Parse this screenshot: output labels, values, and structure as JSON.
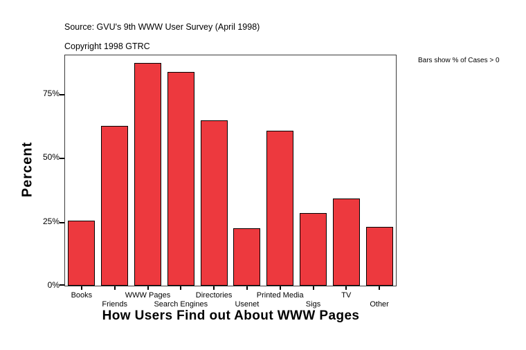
{
  "header": {
    "source": "Source: GVU's 9th WWW User Survey (April 1998)",
    "copyright": "Copyright 1998 GTRC"
  },
  "annotation": "Bars show % of Cases > 0",
  "chart_data": {
    "type": "bar",
    "title": "How Users Find out About WWW Pages",
    "xlabel": "",
    "ylabel": "Percent",
    "categories": [
      "Books",
      "Friends",
      "WWW Pages",
      "Search Engines",
      "Directories",
      "Usenet",
      "Printed Media",
      "Sigs",
      "TV",
      "Other"
    ],
    "values": [
      25.5,
      62.5,
      87,
      83.5,
      64.5,
      22.5,
      60.5,
      28.5,
      34,
      23
    ],
    "ytick_labels": [
      "0%",
      "25%",
      "50%",
      "75%"
    ],
    "ytick_values": [
      0,
      25,
      50,
      75
    ],
    "ylim": [
      0,
      90
    ],
    "grid": false,
    "legend": null,
    "bar_color": "#ED393E",
    "bar_border_color": "#000000",
    "frame_color": "#3a3a3a"
  }
}
